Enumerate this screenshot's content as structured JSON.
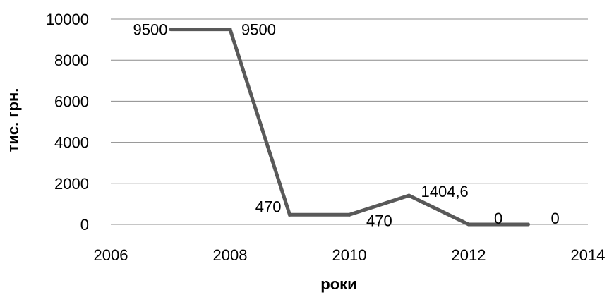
{
  "chart_data": {
    "type": "scatter",
    "mode": "lines",
    "xlabel": "роки",
    "ylabel": "тис. грн.",
    "xlim": [
      2006,
      2014
    ],
    "ylim": [
      0,
      10000
    ],
    "x_ticks": [
      2006,
      2008,
      2010,
      2012,
      2014
    ],
    "y_ticks": [
      0,
      2000,
      4000,
      6000,
      8000,
      10000
    ],
    "x_tick_labels": [
      "2006",
      "2008",
      "2010",
      "2012",
      "2014"
    ],
    "y_tick_labels": [
      "0",
      "2000",
      "4000",
      "6000",
      "8000",
      "10000"
    ],
    "grid": "horizontal",
    "legend": "none",
    "series_color": "#595959",
    "series": [
      {
        "x": [
          2007,
          2008,
          2009,
          2010,
          2011,
          2012,
          2013
        ],
        "y": [
          9500,
          9500,
          470,
          470,
          1404.6,
          0,
          0
        ]
      }
    ],
    "data_labels": [
      {
        "x": 2007,
        "y": 9500,
        "text": "9500",
        "position": "left"
      },
      {
        "x": 2008,
        "y": 9500,
        "text": "9500",
        "position": "right"
      },
      {
        "x": 2009,
        "y": 470,
        "text": "470",
        "position": "left"
      },
      {
        "x": 2010,
        "y": 470,
        "text": "470",
        "position": "right"
      },
      {
        "x": 2011,
        "y": 1404.6,
        "text": "1404,6",
        "position": "right"
      },
      {
        "x": 2012,
        "y": 0,
        "text": "0",
        "position": "right"
      },
      {
        "x": 2013,
        "y": 0,
        "text": "0",
        "position": "right"
      }
    ]
  }
}
